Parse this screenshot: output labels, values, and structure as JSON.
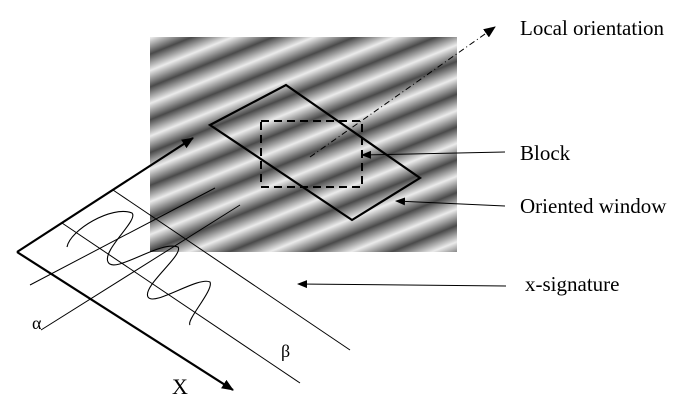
{
  "labels": {
    "local_orientation": "Local orientation",
    "block": "Block",
    "oriented_window": "Oriented window",
    "x_signature": "x-signature",
    "alpha": "α",
    "beta": "β",
    "x_axis": "X"
  },
  "colors": {
    "stripe_light": "#ebebeb",
    "stripe_dark": "#4a4a4a",
    "ink": "#000000",
    "background": "#ffffff"
  }
}
